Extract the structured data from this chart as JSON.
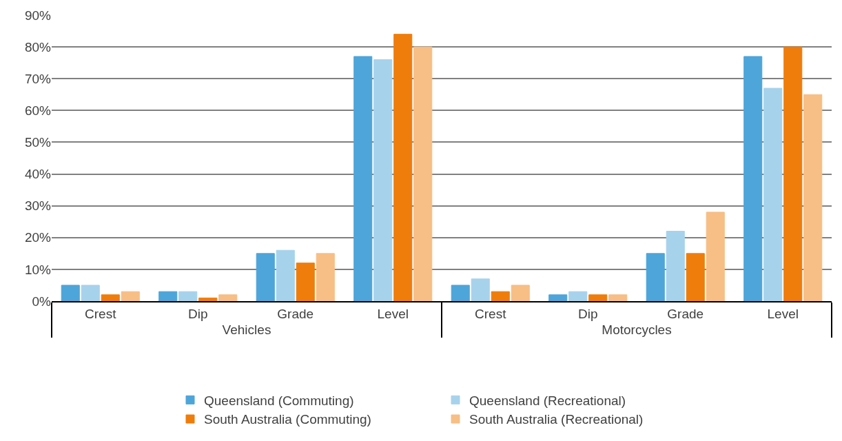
{
  "chart_data": {
    "type": "bar",
    "categories": [
      "Crest",
      "Dip",
      "Grade",
      "Level",
      "Crest",
      "Dip",
      "Grade",
      "Level"
    ],
    "annotations": [
      "Vehicles",
      "Motorcycles"
    ],
    "series": [
      {
        "name": "Queensland (Commuting)",
        "color": "#4ea5d9",
        "values": [
          5,
          3,
          15,
          77,
          5,
          2,
          15,
          77
        ]
      },
      {
        "name": "Queensland (Recreational)",
        "color": "#a7d2ec",
        "values": [
          5,
          3,
          16,
          76,
          7,
          3,
          22,
          67
        ]
      },
      {
        "name": "South Australia (Commuting)",
        "color": "#ef7d0b",
        "values": [
          2,
          1,
          12,
          84,
          3,
          2,
          15,
          80
        ]
      },
      {
        "name": "South Australia (Recreational)",
        "color": "#f7be85",
        "values": [
          3,
          2,
          15,
          80,
          5,
          2,
          28,
          65
        ]
      }
    ],
    "ylim": [
      0,
      90
    ],
    "yticks": [
      {
        "value": 0,
        "label": "0%"
      },
      {
        "value": 10,
        "label": "10%"
      },
      {
        "value": 20,
        "label": "20%"
      },
      {
        "value": 30,
        "label": "30%"
      },
      {
        "value": 40,
        "label": "40%"
      },
      {
        "value": 50,
        "label": "50%"
      },
      {
        "value": 60,
        "label": "60%"
      },
      {
        "value": 70,
        "label": "70%"
      },
      {
        "value": 80,
        "label": "80%"
      },
      {
        "value": 90,
        "label": "90%"
      }
    ],
    "grid": "y",
    "legend": "bottom"
  }
}
